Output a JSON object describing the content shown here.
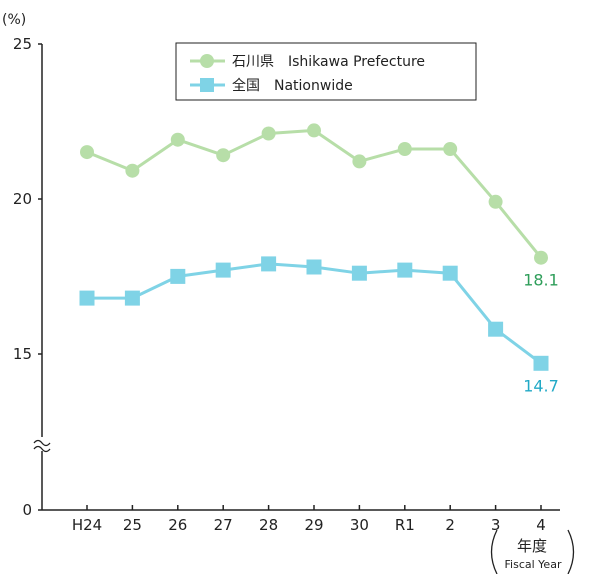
{
  "chart_data": {
    "type": "line",
    "unit_label": "(%)",
    "categories": [
      "H24",
      "25",
      "26",
      "27",
      "28",
      "29",
      "30",
      "R1",
      "2",
      "3",
      "4"
    ],
    "y_ticks": [
      "0",
      "15",
      "20",
      "25"
    ],
    "ylim": [
      0,
      25
    ],
    "axis_break": true,
    "x_axis_title_jp": "年度",
    "x_axis_title_en": "Fiscal Year",
    "grid": false,
    "legend_position": "top-center",
    "series": [
      {
        "name": "石川県　Ishikawa Prefecture",
        "marker": "circle",
        "line_color": "#b7dea8",
        "marker_color": "#b7dea8",
        "label_color": "#2f9e5a",
        "values": [
          21.5,
          20.9,
          21.9,
          21.4,
          22.1,
          22.2,
          21.2,
          21.6,
          21.6,
          19.9,
          18.1
        ],
        "end_label": "18.1"
      },
      {
        "name": "全国　Nationwide",
        "marker": "square",
        "line_color": "#7fd3e6",
        "marker_color": "#7fd3e6",
        "label_color": "#22a9c6",
        "values": [
          16.8,
          16.8,
          17.5,
          17.7,
          17.9,
          17.8,
          17.6,
          17.7,
          17.6,
          15.8,
          14.7
        ],
        "end_label": "14.7"
      }
    ]
  }
}
